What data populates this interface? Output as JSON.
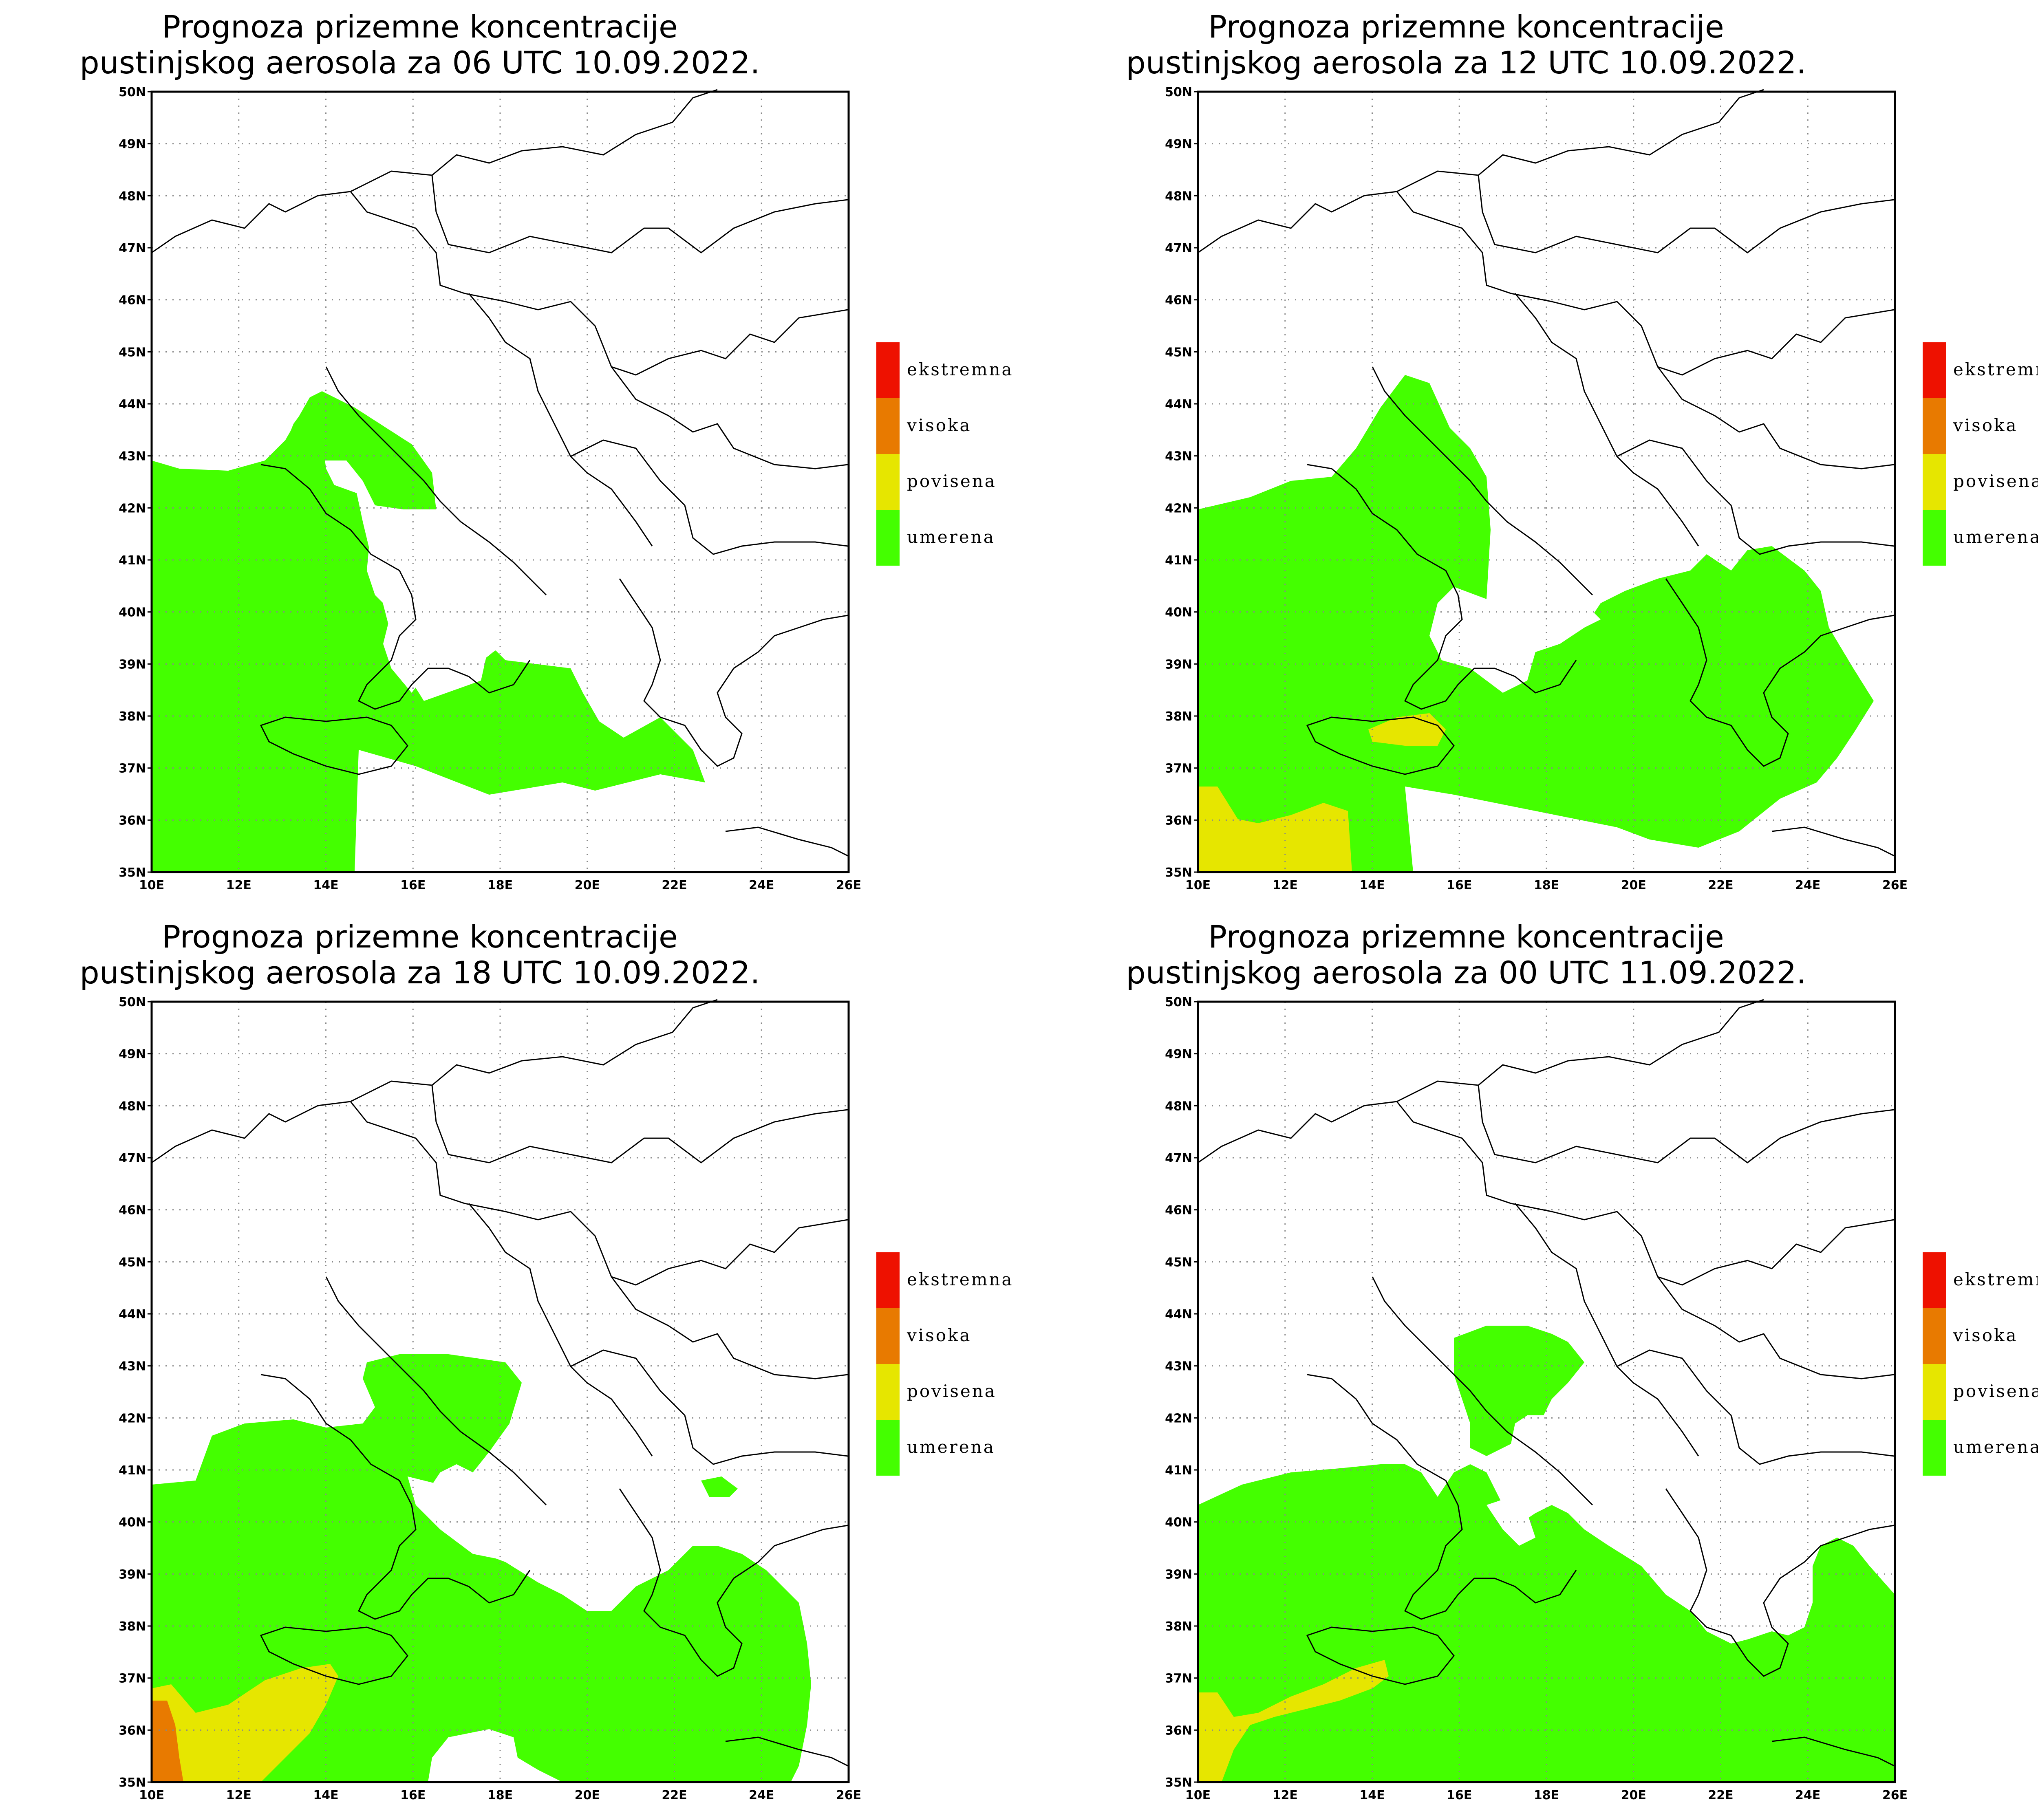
{
  "colors": {
    "umerena": "#44ff00",
    "povisena": "#e6e600",
    "visoka": "#e87a00",
    "ekstremna": "#ee1100",
    "borders": "#000000",
    "grid": "#888888"
  },
  "legend": [
    {
      "label": "ekstremna",
      "color": "#ee1100"
    },
    {
      "label": "visoka",
      "color": "#e87a00"
    },
    {
      "label": "povisena",
      "color": "#e6e600"
    },
    {
      "label": "umerena",
      "color": "#44ff00"
    }
  ],
  "lon_labels": [
    "10E",
    "12E",
    "14E",
    "16E",
    "18E",
    "20E",
    "22E",
    "24E",
    "26E"
  ],
  "lat_labels": [
    "35N",
    "36N",
    "37N",
    "38N",
    "39N",
    "40N",
    "41N",
    "42N",
    "43N",
    "44N",
    "45N",
    "46N",
    "47N",
    "48N",
    "49N",
    "50N"
  ],
  "lon_range": [
    10,
    26
  ],
  "lat_range": [
    35,
    50
  ],
  "panels": [
    {
      "title_line1": "Prognoza prizemne koncentracije",
      "title_line2": "pustinjskog aerosola za 06 UTC 10.09.2022."
    },
    {
      "title_line1": "Prognoza prizemne koncentracije",
      "title_line2": "pustinjskog aerosola za 12 UTC 10.09.2022."
    },
    {
      "title_line1": "Prognoza prizemne koncentracije",
      "title_line2": "pustinjskog aerosola za 18 UTC 10.09.2022."
    },
    {
      "title_line1": "Prognoza prizemne koncentracije",
      "title_line2": "pustinjskog aerosola za 00 UTC 11.09.2022."
    }
  ]
}
